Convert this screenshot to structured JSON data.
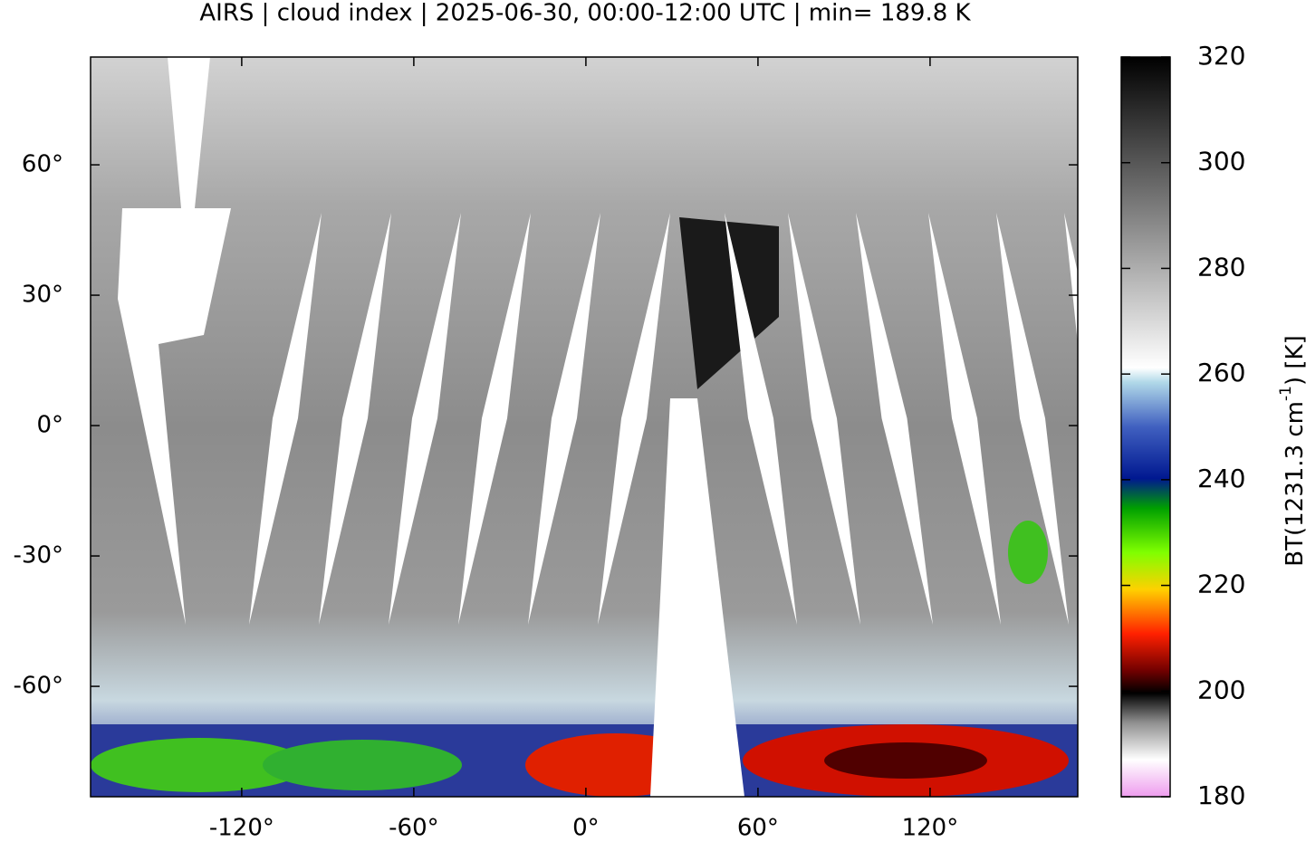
{
  "title": "AIRS | cloud index | 2025-06-30, 00:00-12:00 UTC | min= 189.8 K",
  "map": {
    "xlim": [
      -172.7,
      171.5
    ],
    "ylim": [
      -85.4,
      84.8
    ],
    "xticks": [
      {
        "value": -120,
        "label": "-120°"
      },
      {
        "value": -60,
        "label": "-60°"
      },
      {
        "value": 0,
        "label": "0°"
      },
      {
        "value": 60,
        "label": "60°"
      },
      {
        "value": 120,
        "label": "120°"
      }
    ],
    "yticks": [
      {
        "value": 60,
        "label": "60°"
      },
      {
        "value": 30,
        "label": "30°"
      },
      {
        "value": 0,
        "label": "0°"
      },
      {
        "value": -30,
        "label": "-30°"
      },
      {
        "value": -60,
        "label": "-60°"
      }
    ]
  },
  "colorbar": {
    "range": [
      180,
      320
    ],
    "ticks": [
      180,
      200,
      220,
      240,
      260,
      280,
      300,
      320
    ],
    "label_main": "BT(1231.3 cm",
    "label_sup": "-1",
    "label_end": ") [K]"
  }
}
